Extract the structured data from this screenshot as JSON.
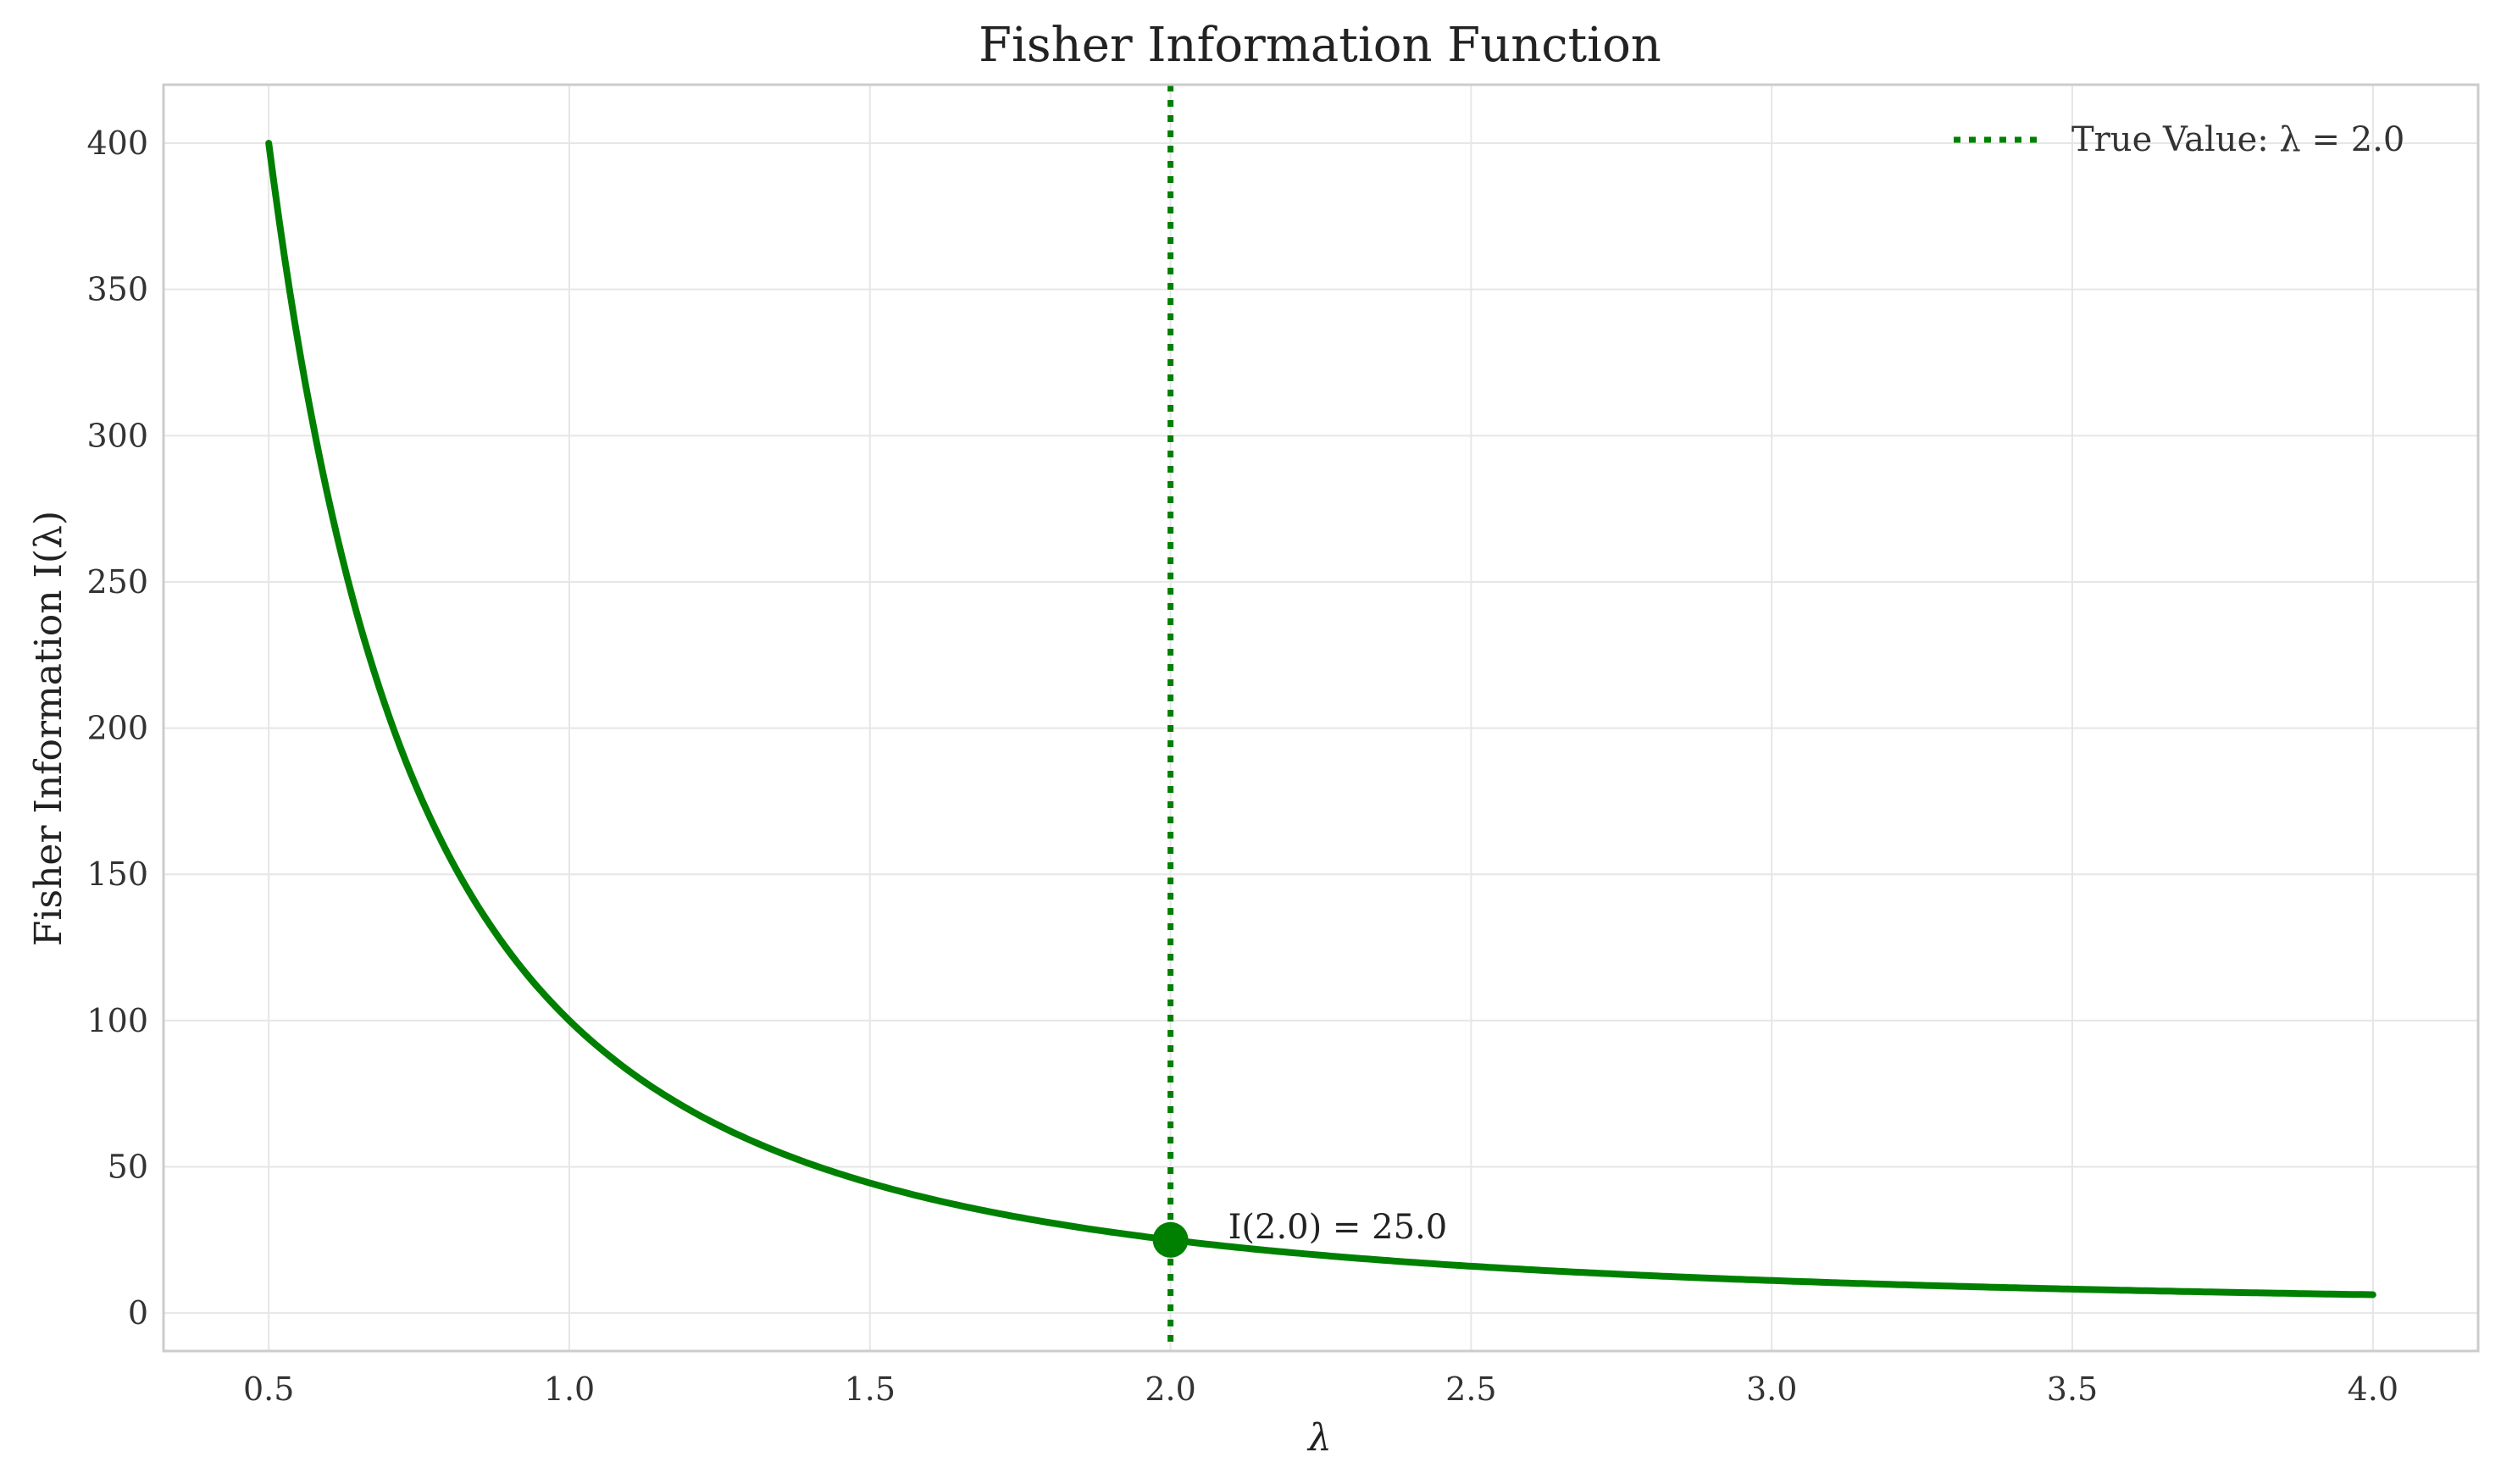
{
  "chart_data": {
    "type": "line",
    "title": "Fisher Information Function",
    "xlabel": "λ",
    "ylabel": "Fisher Information I(λ)",
    "xlim": [
      0.325,
      4.175
    ],
    "ylim": [
      -13,
      420
    ],
    "xticks": [
      0.5,
      1.0,
      1.5,
      2.0,
      2.5,
      3.0,
      3.5,
      4.0
    ],
    "xtick_labels": [
      "0.5",
      "1.0",
      "1.5",
      "2.0",
      "2.5",
      "3.0",
      "3.5",
      "4.0"
    ],
    "yticks": [
      0,
      50,
      100,
      150,
      200,
      250,
      300,
      350,
      400
    ],
    "ytick_labels": [
      "0",
      "50",
      "100",
      "150",
      "200",
      "250",
      "300",
      "350",
      "400"
    ],
    "grid": true,
    "legend_position": "top-right",
    "colors": {
      "curve": "#008000",
      "reference": "#008000",
      "grid": "#e6e6e6",
      "frame": "#cccccc"
    },
    "series": [
      {
        "style": "solid",
        "x": [
          0.5,
          0.55,
          0.6,
          0.65,
          0.7,
          0.75,
          0.8,
          0.85,
          0.9,
          0.95,
          1.0,
          1.1,
          1.2,
          1.3,
          1.4,
          1.5,
          1.6,
          1.7,
          1.8,
          1.9,
          2.0,
          2.2,
          2.4,
          2.6,
          2.8,
          3.0,
          3.2,
          3.4,
          3.6,
          3.8,
          4.0
        ],
        "y": [
          400.0,
          330.6,
          277.8,
          236.7,
          204.1,
          177.8,
          156.3,
          138.4,
          123.5,
          110.8,
          100.0,
          82.6,
          69.4,
          59.2,
          51.0,
          44.4,
          39.1,
          34.6,
          30.9,
          27.7,
          25.0,
          20.7,
          17.4,
          14.8,
          12.8,
          11.1,
          9.8,
          8.7,
          7.7,
          6.9,
          6.25
        ]
      }
    ],
    "reference_line": {
      "x": 2.0,
      "style": "dotted",
      "label": "True Value: λ = 2.0"
    },
    "marker": {
      "x": 2.0,
      "y": 25.0,
      "label": "I(2.0) = 25.0"
    }
  }
}
